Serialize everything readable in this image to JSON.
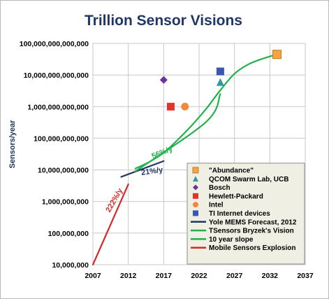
{
  "chart_data": {
    "type": "line",
    "title": "Trillion Sensor Visions",
    "ylabel": "Sensors/year",
    "xlabel": "",
    "y_scale": "log",
    "xlim": [
      2007,
      2037
    ],
    "ylim": [
      10000000,
      100000000000000
    ],
    "x_ticks": [
      "2007",
      "2012",
      "2017",
      "2022",
      "2027",
      "2032",
      "2037"
    ],
    "y_ticks": [
      "10,000,000",
      "100,000,000",
      "1,000,000,000",
      "10,000,000,000",
      "100,000,000,000",
      "1,000,000,000,000",
      "10,000,000,000,000",
      "100,000,000,000,000"
    ],
    "grid": true,
    "legend_position": "bottom-right",
    "lines": [
      {
        "name": "Yole MEMS Forecast, 2012",
        "color": "#1f3864",
        "points": [
          [
            2011,
            6000000000
          ],
          [
            2017,
            19000000000
          ]
        ]
      },
      {
        "name": "TSensors Bryzek's Vision",
        "color": "#22b14c",
        "points": [
          [
            2013,
            11000000000
          ],
          [
            2015,
            18000000000
          ],
          [
            2017,
            35000000000
          ],
          [
            2019,
            90000000000
          ],
          [
            2021,
            260000000000
          ],
          [
            2023,
            850000000000
          ],
          [
            2025,
            3300000000000
          ],
          [
            2027,
            11000000000000
          ],
          [
            2029,
            22000000000000
          ],
          [
            2031,
            33000000000000
          ],
          [
            2033,
            45000000000000
          ]
        ]
      },
      {
        "name": "10 year slope",
        "color": "#22b14c",
        "points": [
          [
            2013,
            9000000000
          ],
          [
            2023,
            330000000000
          ],
          [
            2025,
            2500000000000
          ]
        ]
      },
      {
        "name": "Mobile Sensors Explosion",
        "color": "#d42a2a",
        "points": [
          [
            2007,
            10000000
          ],
          [
            2012,
            3500000000
          ]
        ]
      }
    ],
    "points": [
      {
        "name": "\"Abundance\"",
        "shape": "square",
        "color": "#f4a442",
        "x": 2033,
        "y": 45000000000000
      },
      {
        "name": "QCOM Swarm Lab, UCB",
        "shape": "triangle",
        "color": "#2e9a9a",
        "x": 2025,
        "y": 6000000000000
      },
      {
        "name": "Bosch",
        "shape": "diamond",
        "color": "#6f3198",
        "x": 2017,
        "y": 7000000000000
      },
      {
        "name": "Hewlett-Packard",
        "shape": "square",
        "color": "#e0342c",
        "x": 2018,
        "y": 1000000000000
      },
      {
        "name": "Intel",
        "shape": "circle",
        "color": "#ef8a3c",
        "x": 2020,
        "y": 1000000000000
      },
      {
        "name": "TI Internet devices",
        "shape": "square",
        "color": "#3a56b0",
        "x": 2025,
        "y": 13000000000000
      }
    ],
    "annotations": [
      {
        "text": "56%/y",
        "color": "#22b14c",
        "x": 2016.9,
        "y": 30000000000,
        "rotate": -22
      },
      {
        "text": "21%/y",
        "color": "#1f3864",
        "x": 2015.4,
        "y": 7600000000,
        "rotate": -8
      },
      {
        "text": "222%/y",
        "color": "#d42a2a",
        "x": 2010.3,
        "y": 1000000000,
        "rotate": -60
      }
    ],
    "legend": [
      {
        "label": "\"Abundance\"",
        "marker": "square",
        "color": "#f4a442"
      },
      {
        "label": "QCOM Swarm Lab, UCB",
        "marker": "triangle",
        "color": "#2e9a9a"
      },
      {
        "label": "Bosch",
        "marker": "diamond",
        "color": "#6f3198"
      },
      {
        "label": "Hewlett-Packard",
        "marker": "square",
        "color": "#e0342c"
      },
      {
        "label": "Intel",
        "marker": "circle",
        "color": "#ef8a3c"
      },
      {
        "label": "TI Internet devices",
        "marker": "square",
        "color": "#3a56b0"
      },
      {
        "label": "Yole MEMS Forecast, 2012",
        "marker": "line",
        "color": "#1f3864"
      },
      {
        "label": "TSensors Bryzek's Vision",
        "marker": "line",
        "color": "#22b14c"
      },
      {
        "label": "10 year slope",
        "marker": "line",
        "color": "#22b14c"
      },
      {
        "label": "Mobile Sensors Explosion",
        "marker": "line",
        "color": "#d42a2a"
      }
    ]
  }
}
